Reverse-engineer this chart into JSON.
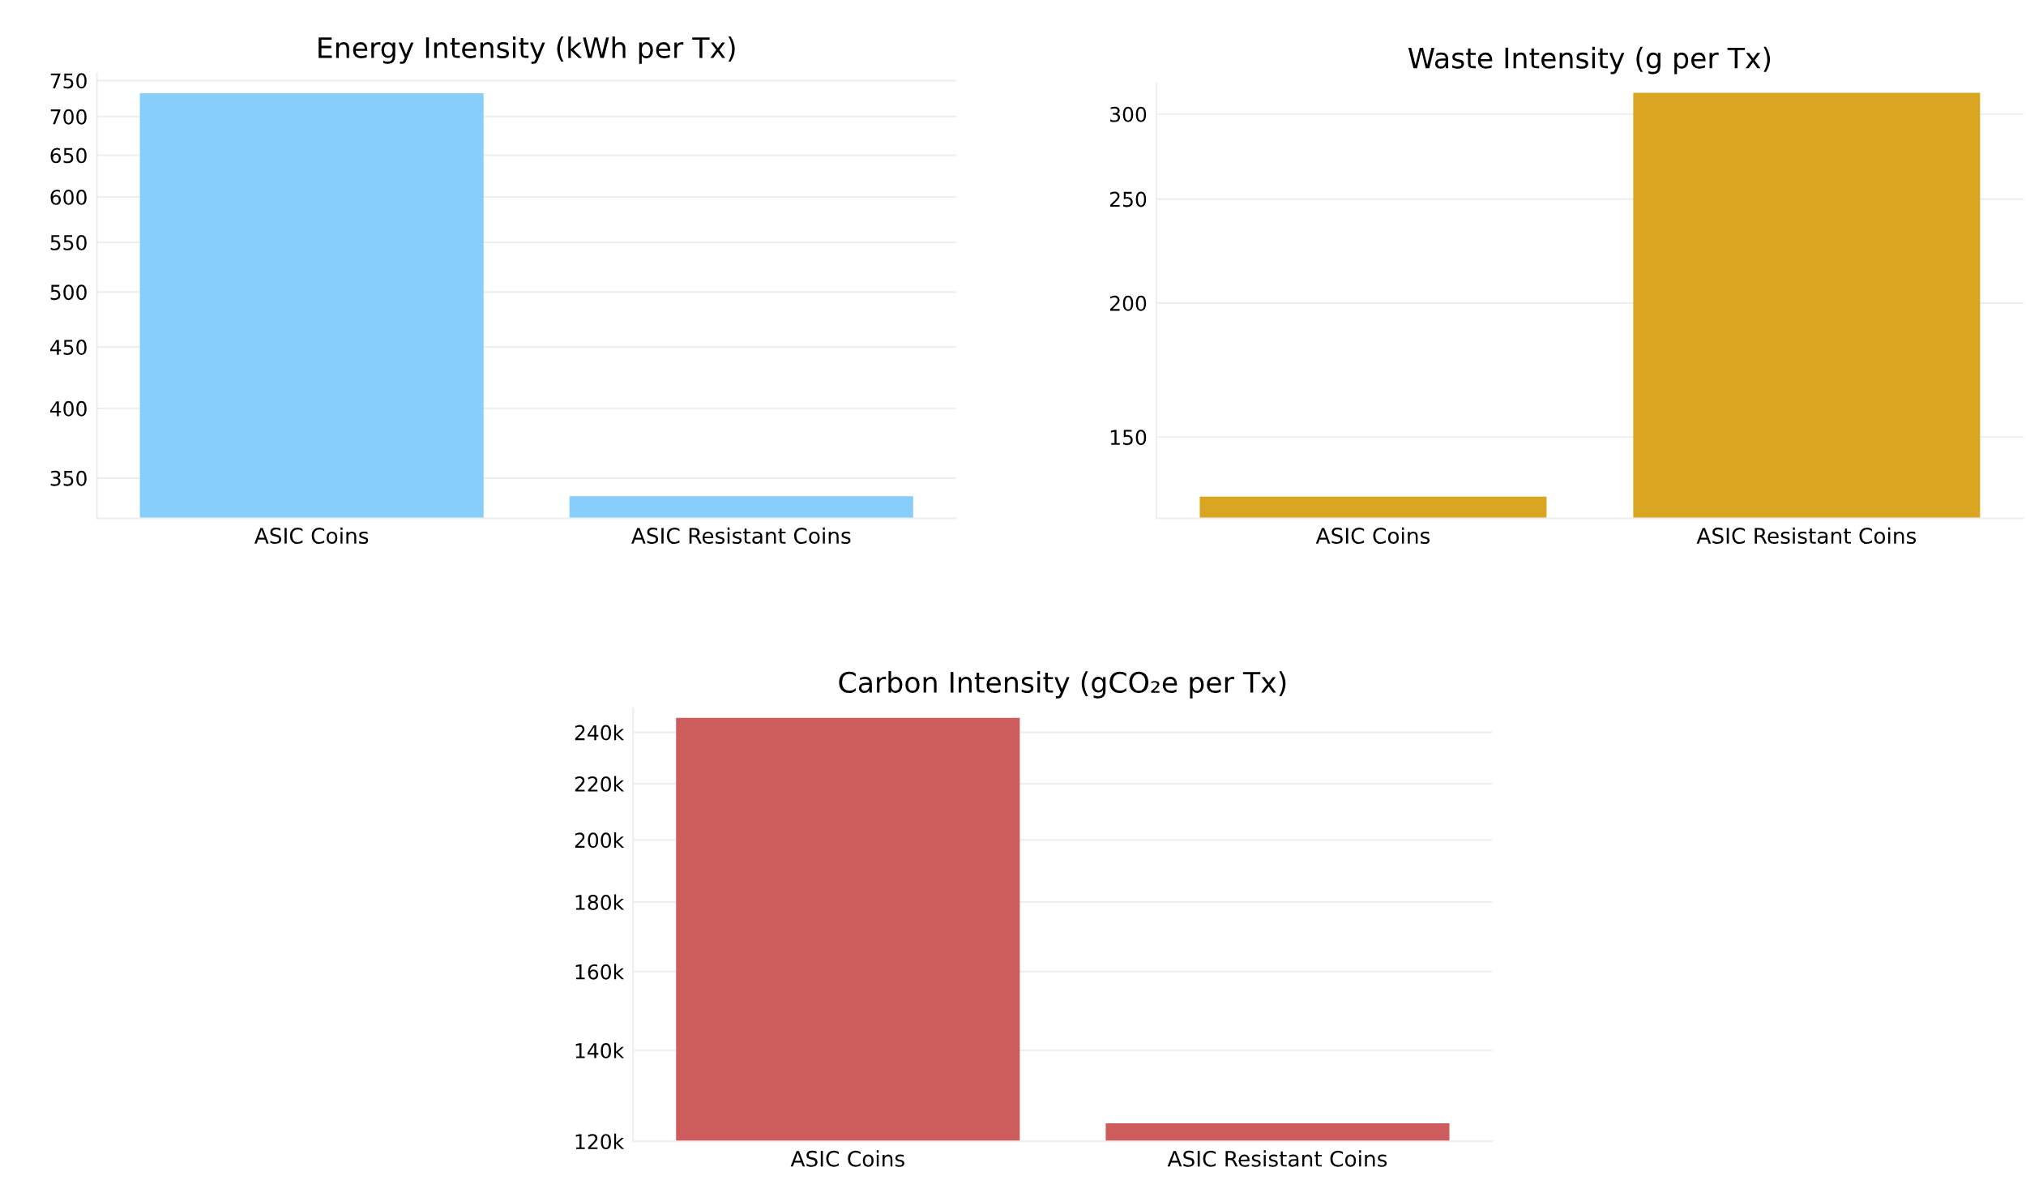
{
  "chart_data": [
    {
      "type": "bar",
      "title": "Energy Intensity (kWh per Tx)",
      "categories": [
        "ASIC Coins",
        "ASIC Resistant Coins"
      ],
      "values": [
        732,
        338
      ],
      "color": "#87cefa",
      "log": "y",
      "ylim": [
        324,
        760
      ],
      "yticks": [
        350,
        400,
        450,
        500,
        550,
        600,
        650,
        700,
        750
      ],
      "grid": "y"
    },
    {
      "type": "bar",
      "title": "Waste Intensity (g per Tx)",
      "categories": [
        "ASIC Coins",
        "ASIC Resistant Coins"
      ],
      "values": [
        132,
        314
      ],
      "color": "#daa520",
      "log": "y",
      "ylim": [
        126,
        320
      ],
      "yticks": [
        150,
        200,
        250,
        300
      ],
      "grid": "y"
    },
    {
      "type": "bar",
      "title": "Carbon Intensity (gCO₂e per Tx)",
      "categories": [
        "ASIC Coins",
        "ASIC Resistant Coins"
      ],
      "values": [
        246000,
        123700
      ],
      "color": "#cd5c5c",
      "log": "y",
      "ylim": [
        120000,
        250000
      ],
      "yticks": [
        {
          "value": 120000,
          "label": "120k"
        },
        {
          "value": 140000,
          "label": "140k"
        },
        {
          "value": 160000,
          "label": "160k"
        },
        {
          "value": 180000,
          "label": "180k"
        },
        {
          "value": 200000,
          "label": "200k"
        },
        {
          "value": 220000,
          "label": "220k"
        },
        {
          "value": 240000,
          "label": "240k"
        }
      ],
      "grid": "y"
    }
  ]
}
